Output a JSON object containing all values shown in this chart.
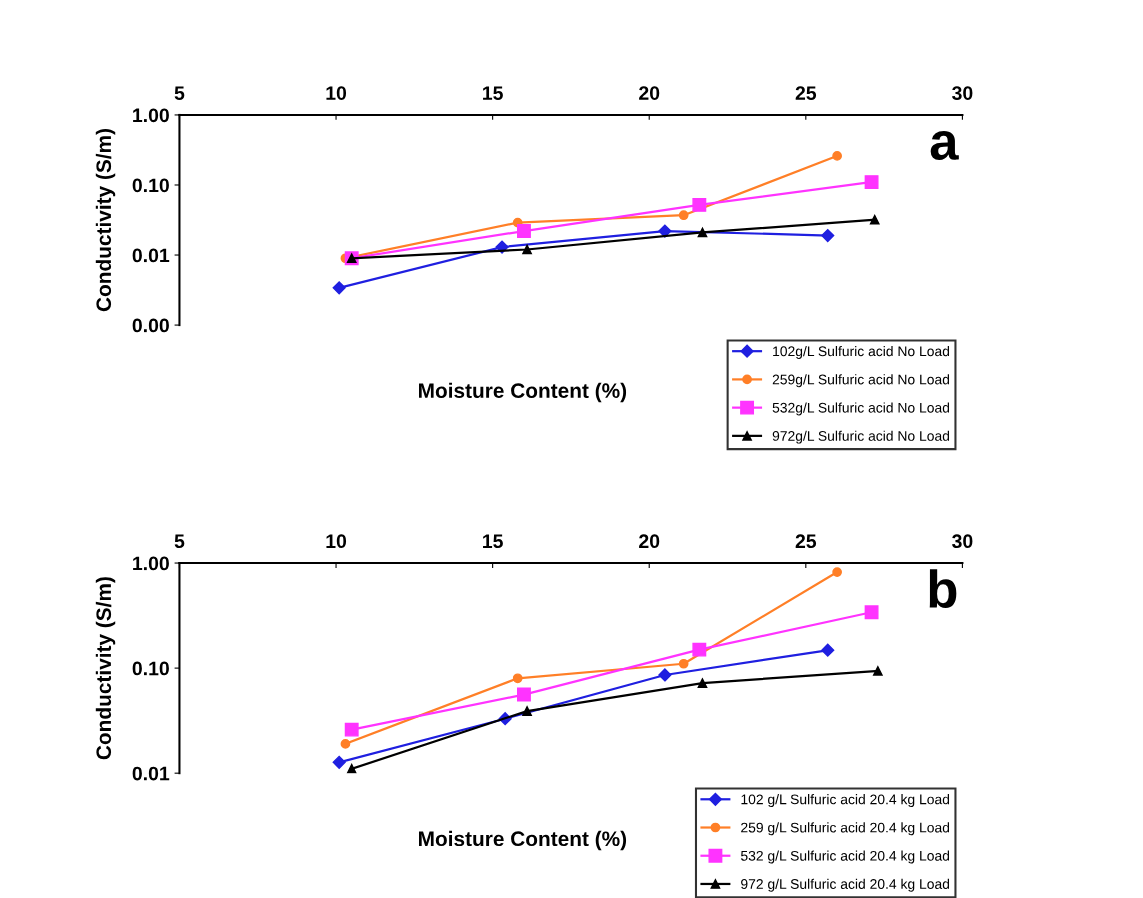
{
  "chart_data": [
    {
      "type": "line",
      "title": "a",
      "xlabel": "Moisture Content (%)",
      "ylabel": "Conductivity (S/m)",
      "log": "y",
      "xlim": [
        5,
        30
      ],
      "xticks": [
        5,
        10,
        15,
        20,
        25,
        30
      ],
      "ylim": [
        0.001,
        1
      ],
      "yticks": [
        {
          "value": 0.001,
          "label": "0.00"
        },
        {
          "value": 0.01,
          "label": "0.01"
        },
        {
          "value": 0.1,
          "label": "0.10"
        },
        {
          "value": 1,
          "label": "1.00"
        }
      ],
      "grid": false,
      "legend": "bottom right",
      "series": [
        {
          "name": "102g/L Sulfuric acid No Load",
          "color": "#1f1fe0",
          "marker": "diamond",
          "x": [
            10.1,
            15.3,
            20.5,
            25.7
          ],
          "values": [
            0.0034,
            0.013,
            0.022,
            0.019
          ]
        },
        {
          "name": "259g/L Sulfuric acid No Load",
          "color": "#ff7f27",
          "marker": "circle",
          "x": [
            10.3,
            15.8,
            21.1,
            26.0
          ],
          "values": [
            0.009,
            0.029,
            0.037,
            0.26
          ]
        },
        {
          "name": "532g/L Sulfuric acid No Load",
          "color": "#ff33ff",
          "marker": "square",
          "x": [
            10.5,
            16.0,
            21.6,
            27.1
          ],
          "values": [
            0.009,
            0.022,
            0.052,
            0.11
          ]
        },
        {
          "name": "972g/L Sulfuric acid No Load",
          "color": "#000000",
          "marker": "triangle",
          "x": [
            10.5,
            16.1,
            21.7,
            27.2
          ],
          "values": [
            0.009,
            0.012,
            0.021,
            0.032
          ]
        }
      ]
    },
    {
      "type": "line",
      "title": "b",
      "xlabel": "Moisture Content (%)",
      "ylabel": "Conductivity (S/m)",
      "log": "y",
      "xlim": [
        5,
        30
      ],
      "xticks": [
        5,
        10,
        15,
        20,
        25,
        30
      ],
      "ylim": [
        0.01,
        1
      ],
      "yticks": [
        {
          "value": 0.01,
          "label": "0.01"
        },
        {
          "value": 0.1,
          "label": "0.10"
        },
        {
          "value": 1,
          "label": "1.00"
        }
      ],
      "grid": false,
      "legend": "bottom right",
      "series": [
        {
          "name": "102 g/L Sulfuric acid 20.4 kg Load",
          "color": "#1f1fe0",
          "marker": "diamond",
          "x": [
            10.1,
            15.4,
            20.5,
            25.7
          ],
          "values": [
            0.0127,
            0.033,
            0.086,
            0.148
          ]
        },
        {
          "name": "259 g/L Sulfuric acid 20.4 kg Load",
          "color": "#ff7f27",
          "marker": "circle",
          "x": [
            10.3,
            15.8,
            21.1,
            26.0
          ],
          "values": [
            0.019,
            0.08,
            0.11,
            0.82
          ]
        },
        {
          "name": "532 g/L Sulfuric acid 20.4 kg Load",
          "color": "#ff33ff",
          "marker": "square",
          "x": [
            10.5,
            16.0,
            21.6,
            27.1
          ],
          "values": [
            0.026,
            0.056,
            0.15,
            0.34
          ]
        },
        {
          "name": "972 g/L Sulfuric acid 20.4 kg Load",
          "color": "#000000",
          "marker": "triangle",
          "x": [
            10.5,
            16.1,
            21.7,
            27.3
          ],
          "values": [
            0.011,
            0.039,
            0.072,
            0.094
          ]
        }
      ]
    }
  ]
}
